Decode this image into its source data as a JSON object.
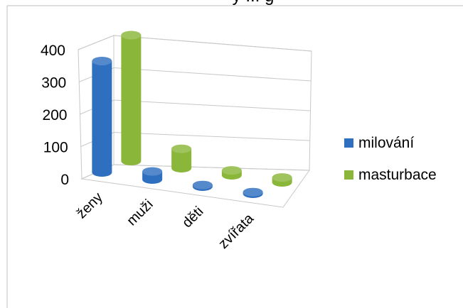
{
  "chart_data": {
    "type": "bar",
    "variant": "3d-cylinder",
    "title": "",
    "title_fragment": "y ... g",
    "categories": [
      "ženy",
      "muži",
      "děti",
      "zvířata"
    ],
    "series": [
      {
        "name": "milování",
        "color": "#2e6fbf",
        "values": [
          345,
          25,
          5,
          5
        ]
      },
      {
        "name": "masturbace",
        "color": "#8ab63a",
        "values": [
          390,
          60,
          15,
          15
        ]
      }
    ],
    "yticks": [
      0,
      100,
      200,
      300,
      400
    ],
    "ylim": [
      0,
      400
    ],
    "grid": true,
    "legend_position": "right"
  }
}
